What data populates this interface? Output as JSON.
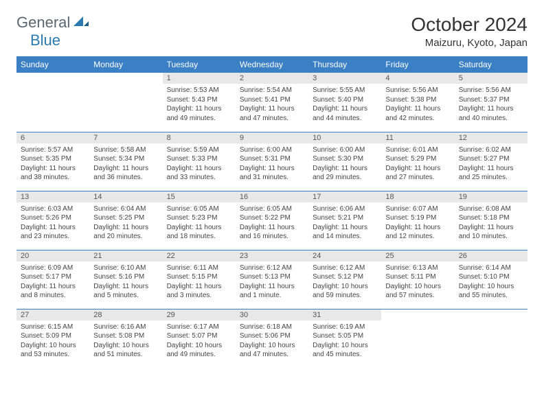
{
  "logo": {
    "text1": "General",
    "text2": "Blue"
  },
  "title": "October 2024",
  "location": "Maizuru, Kyoto, Japan",
  "colors": {
    "header_bg": "#3b7fc4",
    "header_text": "#ffffff",
    "daynum_bg": "#e8e8e8",
    "border": "#3b7fc4",
    "logo_gray": "#5a6670",
    "logo_blue": "#2a7ab0"
  },
  "weekdays": [
    "Sunday",
    "Monday",
    "Tuesday",
    "Wednesday",
    "Thursday",
    "Friday",
    "Saturday"
  ],
  "weeks": [
    [
      null,
      null,
      {
        "n": "1",
        "sr": "5:53 AM",
        "ss": "5:43 PM",
        "dl": "11 hours and 49 minutes."
      },
      {
        "n": "2",
        "sr": "5:54 AM",
        "ss": "5:41 PM",
        "dl": "11 hours and 47 minutes."
      },
      {
        "n": "3",
        "sr": "5:55 AM",
        "ss": "5:40 PM",
        "dl": "11 hours and 44 minutes."
      },
      {
        "n": "4",
        "sr": "5:56 AM",
        "ss": "5:38 PM",
        "dl": "11 hours and 42 minutes."
      },
      {
        "n": "5",
        "sr": "5:56 AM",
        "ss": "5:37 PM",
        "dl": "11 hours and 40 minutes."
      }
    ],
    [
      {
        "n": "6",
        "sr": "5:57 AM",
        "ss": "5:35 PM",
        "dl": "11 hours and 38 minutes."
      },
      {
        "n": "7",
        "sr": "5:58 AM",
        "ss": "5:34 PM",
        "dl": "11 hours and 36 minutes."
      },
      {
        "n": "8",
        "sr": "5:59 AM",
        "ss": "5:33 PM",
        "dl": "11 hours and 33 minutes."
      },
      {
        "n": "9",
        "sr": "6:00 AM",
        "ss": "5:31 PM",
        "dl": "11 hours and 31 minutes."
      },
      {
        "n": "10",
        "sr": "6:00 AM",
        "ss": "5:30 PM",
        "dl": "11 hours and 29 minutes."
      },
      {
        "n": "11",
        "sr": "6:01 AM",
        "ss": "5:29 PM",
        "dl": "11 hours and 27 minutes."
      },
      {
        "n": "12",
        "sr": "6:02 AM",
        "ss": "5:27 PM",
        "dl": "11 hours and 25 minutes."
      }
    ],
    [
      {
        "n": "13",
        "sr": "6:03 AM",
        "ss": "5:26 PM",
        "dl": "11 hours and 23 minutes."
      },
      {
        "n": "14",
        "sr": "6:04 AM",
        "ss": "5:25 PM",
        "dl": "11 hours and 20 minutes."
      },
      {
        "n": "15",
        "sr": "6:05 AM",
        "ss": "5:23 PM",
        "dl": "11 hours and 18 minutes."
      },
      {
        "n": "16",
        "sr": "6:05 AM",
        "ss": "5:22 PM",
        "dl": "11 hours and 16 minutes."
      },
      {
        "n": "17",
        "sr": "6:06 AM",
        "ss": "5:21 PM",
        "dl": "11 hours and 14 minutes."
      },
      {
        "n": "18",
        "sr": "6:07 AM",
        "ss": "5:19 PM",
        "dl": "11 hours and 12 minutes."
      },
      {
        "n": "19",
        "sr": "6:08 AM",
        "ss": "5:18 PM",
        "dl": "11 hours and 10 minutes."
      }
    ],
    [
      {
        "n": "20",
        "sr": "6:09 AM",
        "ss": "5:17 PM",
        "dl": "11 hours and 8 minutes."
      },
      {
        "n": "21",
        "sr": "6:10 AM",
        "ss": "5:16 PM",
        "dl": "11 hours and 5 minutes."
      },
      {
        "n": "22",
        "sr": "6:11 AM",
        "ss": "5:15 PM",
        "dl": "11 hours and 3 minutes."
      },
      {
        "n": "23",
        "sr": "6:12 AM",
        "ss": "5:13 PM",
        "dl": "11 hours and 1 minute."
      },
      {
        "n": "24",
        "sr": "6:12 AM",
        "ss": "5:12 PM",
        "dl": "10 hours and 59 minutes."
      },
      {
        "n": "25",
        "sr": "6:13 AM",
        "ss": "5:11 PM",
        "dl": "10 hours and 57 minutes."
      },
      {
        "n": "26",
        "sr": "6:14 AM",
        "ss": "5:10 PM",
        "dl": "10 hours and 55 minutes."
      }
    ],
    [
      {
        "n": "27",
        "sr": "6:15 AM",
        "ss": "5:09 PM",
        "dl": "10 hours and 53 minutes."
      },
      {
        "n": "28",
        "sr": "6:16 AM",
        "ss": "5:08 PM",
        "dl": "10 hours and 51 minutes."
      },
      {
        "n": "29",
        "sr": "6:17 AM",
        "ss": "5:07 PM",
        "dl": "10 hours and 49 minutes."
      },
      {
        "n": "30",
        "sr": "6:18 AM",
        "ss": "5:06 PM",
        "dl": "10 hours and 47 minutes."
      },
      {
        "n": "31",
        "sr": "6:19 AM",
        "ss": "5:05 PM",
        "dl": "10 hours and 45 minutes."
      },
      null,
      null
    ]
  ],
  "labels": {
    "sunrise": "Sunrise:",
    "sunset": "Sunset:",
    "daylight": "Daylight:"
  }
}
